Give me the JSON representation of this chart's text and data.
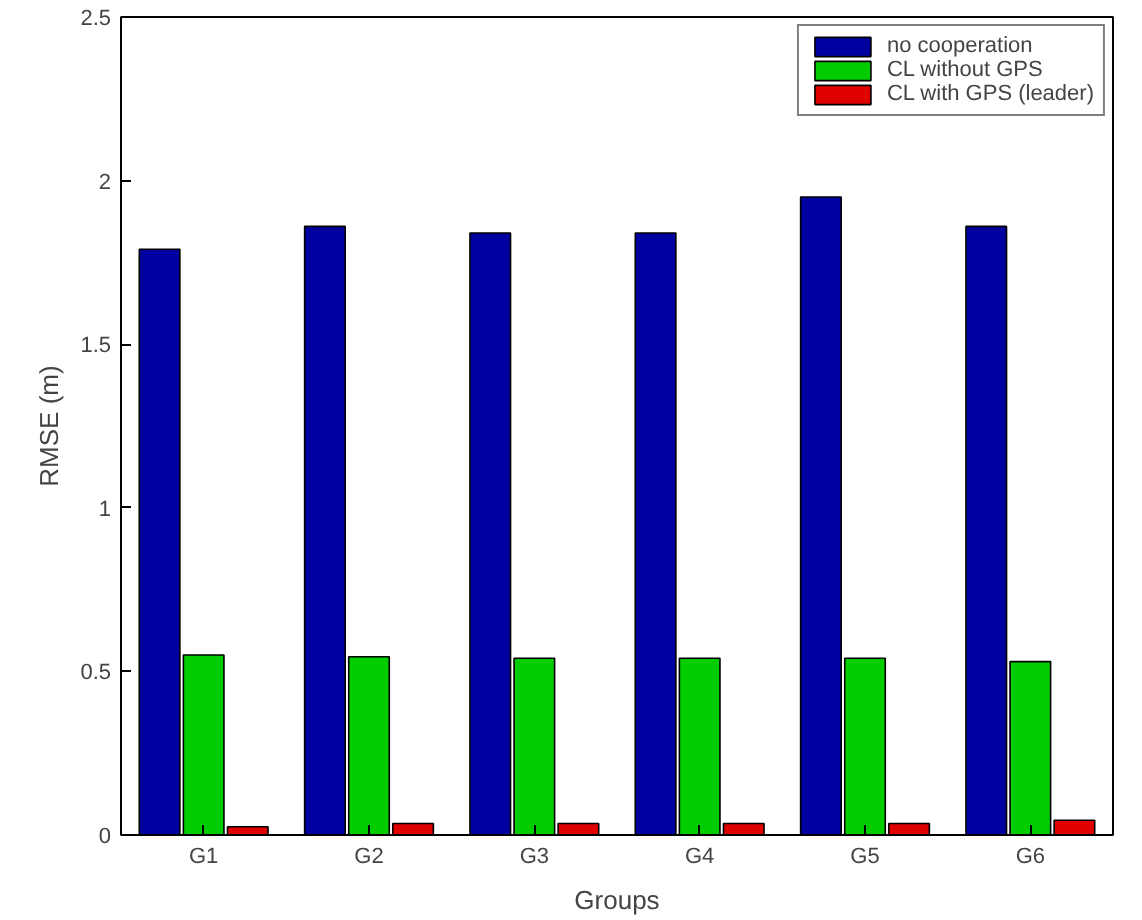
{
  "chart_data": {
    "type": "bar",
    "xlabel": "Groups",
    "ylabel": "RMSE (m)",
    "categories": [
      "G1",
      "G2",
      "G3",
      "G4",
      "G5",
      "G6"
    ],
    "series": [
      {
        "name": "no cooperation",
        "color": "#0000a0",
        "values": [
          1.79,
          1.86,
          1.84,
          1.84,
          1.95,
          1.86
        ]
      },
      {
        "name": "CL without GPS",
        "color": "#00cc00",
        "values": [
          0.55,
          0.545,
          0.54,
          0.54,
          0.54,
          0.53
        ]
      },
      {
        "name": "CL with GPS (leader)",
        "color": "#e00000",
        "values": [
          0.025,
          0.035,
          0.035,
          0.035,
          0.035,
          0.045
        ]
      }
    ],
    "ylim": [
      0,
      2.5
    ],
    "yticks": [
      0,
      0.5,
      1,
      1.5,
      2,
      2.5
    ],
    "legend": "top right",
    "grid": false
  }
}
